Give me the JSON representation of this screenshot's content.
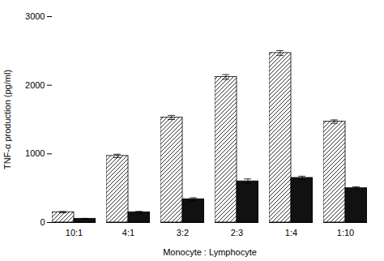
{
  "chart_data": {
    "type": "bar",
    "xlabel": "Monocyte : Lymphocyte",
    "ylabel": "TNF-α production (pg/ml)",
    "categories": [
      "10:1",
      "4:1",
      "3:2",
      "2:3",
      "1:4",
      "1:10"
    ],
    "series": [
      {
        "color": "#ffffff",
        "values": [
          150,
          970,
          1530,
          2120,
          2470,
          1470
        ],
        "errors": [
          10,
          25,
          30,
          35,
          35,
          25
        ]
      },
      {
        "color": "#111111",
        "values": [
          55,
          150,
          340,
          600,
          650,
          500
        ],
        "errors": [
          5,
          12,
          20,
          35,
          25,
          20
        ]
      }
    ],
    "ylim": [
      0,
      3000
    ],
    "yticks": [
      0,
      1000,
      2000,
      3000
    ],
    "grid": false
  }
}
